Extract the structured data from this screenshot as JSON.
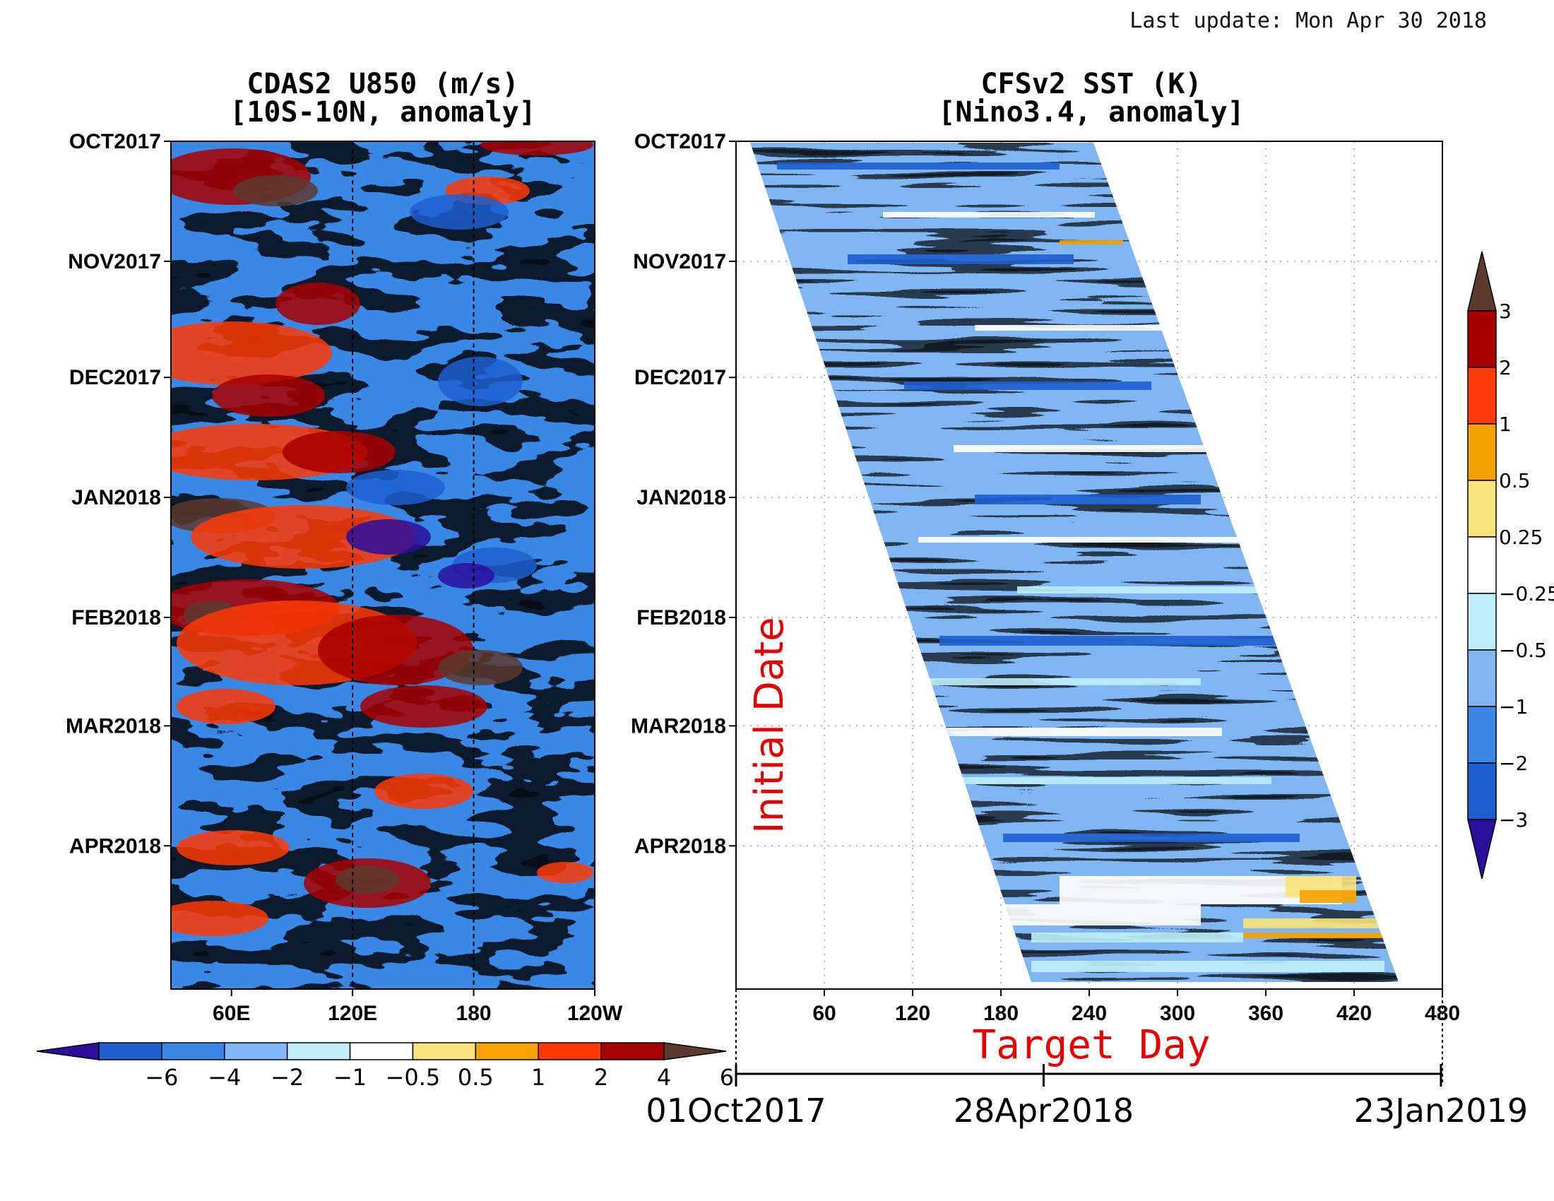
{
  "last_update": "Last update: Mon Apr 30 2018",
  "chart_data": [
    {
      "type": "heatmap",
      "title": "CDAS2 U850 (m/s)",
      "subtitle": "[10S-10N, anomaly]",
      "x_ticks": [
        "60E",
        "120E",
        "180",
        "120W"
      ],
      "x_range_deg_east": [
        30,
        240
      ],
      "x_tick_values": [
        60,
        120,
        180,
        240
      ],
      "dashed_lines_at": [
        120,
        180
      ],
      "y_ticks": [
        "OCT2017",
        "NOV2017",
        "DEC2017",
        "JAN2018",
        "FEB2018",
        "MAR2018",
        "APR2018"
      ],
      "y_range": [
        "2017-10-01",
        "2018-05-08"
      ],
      "colorbar": {
        "orientation": "horizontal",
        "levels": [
          -6,
          -4,
          -2,
          -1,
          -0.5,
          0.5,
          1,
          2,
          4,
          6
        ],
        "labels": [
          "−6",
          "−4",
          "−2",
          "−1",
          "−0.5",
          "0.5",
          "1",
          "2",
          "4",
          "6"
        ],
        "colors": [
          "#2a0f9c",
          "#1e5fd0",
          "#3a88e6",
          "#7fb6f3",
          "#bfeef8",
          "#ffffff",
          "#f9e27a",
          "#f7a100",
          "#ff3a06",
          "#a80000",
          "#5c3a2e"
        ]
      }
    },
    {
      "type": "heatmap",
      "title": "CFSv2 SST (K)",
      "subtitle": "[Nino3.4, anomaly]",
      "xlabel": "Target Day",
      "ylabel": "Initial Date",
      "x_ticks": [
        "60",
        "120",
        "180",
        "240",
        "300",
        "360",
        "420",
        "480"
      ],
      "x_tick_values": [
        60,
        120,
        180,
        240,
        300,
        360,
        420,
        480
      ],
      "x_range": [
        0,
        480
      ],
      "y_ticks": [
        "OCT2017",
        "NOV2017",
        "DEC2017",
        "JAN2018",
        "FEB2018",
        "MAR2018",
        "APR2018"
      ],
      "y_range": [
        "2017-10-01",
        "2018-05-08"
      ],
      "grid": true,
      "date_axis": [
        "01Oct2017",
        "28Apr2018",
        "23Jan2019"
      ],
      "colorbar": {
        "orientation": "vertical",
        "levels": [
          3,
          2,
          1,
          0.5,
          0.25,
          -0.25,
          -0.5,
          -1,
          -2,
          -3
        ],
        "labels": [
          "3",
          "2",
          "1",
          "0.5",
          "0.25",
          "−0.25",
          "−0.5",
          "−1",
          "−2",
          "−3"
        ],
        "colors": [
          "#5c3a2e",
          "#a80000",
          "#ff3a06",
          "#f7a100",
          "#f9e27a",
          "#ffffff",
          "#bfeef8",
          "#7fb6f3",
          "#3a88e6",
          "#1e5fd0",
          "#2a0f9c"
        ]
      }
    }
  ]
}
